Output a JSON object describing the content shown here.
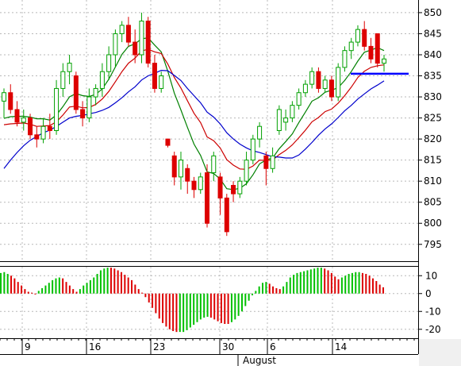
{
  "chart_data": [
    {
      "type": "candlestick",
      "title": "",
      "y_ticks": [
        795,
        800,
        805,
        810,
        815,
        820,
        825,
        830,
        835,
        840,
        845,
        850
      ],
      "ylim": [
        791,
        853
      ],
      "x_ticks": [
        "9",
        "16",
        "23",
        "30",
        "6",
        "14"
      ],
      "x_month_label": "August",
      "grid": true,
      "up_color": "#00a000",
      "down_color": "#dd0000",
      "horizontal_level": 835.5,
      "horizontal_level_color": "#0000ff",
      "candles": [
        [
          829.0,
          832.0,
          825.0,
          831.0
        ],
        [
          831.0,
          833.0,
          826.0,
          827.0
        ],
        [
          827.0,
          829.0,
          823.0,
          824.0
        ],
        [
          824.0,
          827.0,
          822.0,
          825.0
        ],
        [
          825.0,
          826.0,
          820.0,
          821.0
        ],
        [
          821.0,
          823.0,
          818.0,
          820.0
        ],
        [
          820.0,
          825.0,
          819.0,
          823.0
        ],
        [
          823.0,
          826.0,
          820.0,
          822.0
        ],
        [
          822.0,
          834.0,
          821.0,
          832.0
        ],
        [
          832.0,
          838.0,
          830.0,
          836.0
        ],
        [
          836.0,
          840.0,
          833.0,
          838.0
        ],
        [
          835.0,
          836.0,
          826.0,
          827.0
        ],
        [
          827.0,
          829.0,
          823.0,
          825.0
        ],
        [
          825.0,
          832.0,
          824.0,
          830.0
        ],
        [
          830.0,
          833.0,
          828.0,
          832.0
        ],
        [
          832.0,
          838.0,
          830.0,
          836.0
        ],
        [
          836.0,
          842.0,
          834.0,
          840.0
        ],
        [
          840.0,
          846.0,
          837.0,
          845.0
        ],
        [
          845.0,
          848.0,
          843.0,
          847.0
        ],
        [
          847.0,
          849.0,
          842.0,
          843.0
        ],
        [
          843.0,
          846.0,
          838.0,
          840.0
        ],
        [
          840.0,
          850.0,
          838.0,
          848.0
        ],
        [
          848.0,
          849.0,
          837.0,
          838.0
        ],
        [
          838.0,
          840.0,
          831.0,
          832.0
        ],
        [
          832.0,
          836.0,
          831.0,
          835.0
        ],
        [
          820.0,
          820.0,
          818.0,
          818.5
        ],
        [
          816.0,
          817.0,
          809.0,
          811.0
        ],
        [
          811.0,
          817.0,
          808.0,
          815.0
        ],
        [
          813.0,
          814.0,
          807.0,
          810.0
        ],
        [
          810.0,
          811.0,
          806.0,
          808.0
        ],
        [
          808.0,
          812.0,
          807.0,
          811.0
        ],
        [
          812.0,
          814.0,
          799.0,
          800.0
        ],
        [
          812.0,
          817.0,
          810.0,
          816.0
        ],
        [
          811.0,
          812.0,
          802.0,
          806.0
        ],
        [
          806.0,
          807.0,
          797.0,
          798.0
        ],
        [
          809.0,
          810.0,
          805.0,
          807.0
        ],
        [
          807.0,
          811.0,
          806.0,
          810.0
        ],
        [
          810.0,
          817.0,
          809.0,
          815.0
        ],
        [
          815.0,
          821.0,
          814.0,
          820.0
        ],
        [
          820.0,
          824.0,
          818.0,
          823.0
        ],
        [
          816.0,
          817.0,
          809.0,
          813.0
        ],
        [
          813.0,
          818.0,
          812.0,
          816.0
        ],
        [
          822.0,
          828.0,
          821.0,
          827.0
        ],
        [
          824.0,
          827.0,
          822.0,
          825.0
        ],
        [
          825.0,
          829.0,
          824.0,
          828.0
        ],
        [
          828.0,
          832.0,
          827.0,
          831.0
        ],
        [
          831.0,
          834.0,
          830.0,
          833.0
        ],
        [
          833.0,
          837.0,
          832.0,
          836.0
        ],
        [
          836.0,
          837.0,
          831.0,
          832.0
        ],
        [
          832.0,
          835.0,
          831.0,
          834.0
        ],
        [
          834.0,
          835.0,
          829.0,
          830.0
        ],
        [
          830.0,
          838.0,
          829.0,
          837.0
        ],
        [
          837.0,
          842.0,
          836.0,
          841.0
        ],
        [
          841.0,
          844.0,
          839.0,
          843.0
        ],
        [
          843.0,
          847.0,
          842.0,
          846.0
        ],
        [
          846.0,
          848.0,
          841.0,
          842.0
        ],
        [
          842.0,
          844.0,
          838.0,
          839.0
        ],
        [
          845.0,
          845.0,
          837.0,
          838.0
        ],
        [
          838.0,
          840.0,
          836.0,
          839.0
        ]
      ],
      "overlays": [
        {
          "color": "#008000",
          "values": [
            824.9,
            825.3,
            825.4,
            825.4,
            825.2,
            824.8,
            824.8,
            824.5,
            825.7,
            827.7,
            830.0,
            830.8,
            830.3,
            830.1,
            830.6,
            831.9,
            834.2,
            837.1,
            840.1,
            842.0,
            842.6,
            843.8,
            844.0,
            842.3,
            840.7,
            836.1,
            830.9,
            826.9,
            822.8,
            818.8,
            816.1,
            812.2,
            811.8,
            810.5,
            808.2,
            808.0,
            808.3,
            809.4,
            811.5,
            814.1,
            815.0,
            815.5,
            817.7,
            819.4,
            821.2,
            823.9,
            826.4,
            829.0,
            829.8,
            831.1,
            831.6,
            832.2,
            833.9,
            836.0,
            838.5,
            840.6,
            841.1,
            841.7,
            841.0
          ]
        },
        {
          "color": "#cc0000",
          "values": [
            823.4,
            823.6,
            823.7,
            823.8,
            823.5,
            823.0,
            823.1,
            823.2,
            824.1,
            825.7,
            827.6,
            827.8,
            827.4,
            827.5,
            828.2,
            829.5,
            831.3,
            833.6,
            836.0,
            838.0,
            839.2,
            840.9,
            841.3,
            840.7,
            840.3,
            837.8,
            834.6,
            832.1,
            829.1,
            826.1,
            823.9,
            820.5,
            819.6,
            817.9,
            815.1,
            813.8,
            812.9,
            812.8,
            813.6,
            815.0,
            814.9,
            815.0,
            816.3,
            817.3,
            818.6,
            820.3,
            822.1,
            824.1,
            825.1,
            826.5,
            827.1,
            828.5,
            830.3,
            832.3,
            834.6,
            836.1,
            837.0,
            837.4,
            837.6
          ]
        },
        {
          "color": "#0000cc",
          "values": [
            813.0,
            815.0,
            816.8,
            818.4,
            819.7,
            820.6,
            821.5,
            822.1,
            823.0,
            824.0,
            825.0,
            825.4,
            825.6,
            826.0,
            826.3,
            826.8,
            827.5,
            828.6,
            829.8,
            831.2,
            832.4,
            834.0,
            835.0,
            835.6,
            836.3,
            836.2,
            835.1,
            833.9,
            832.0,
            830.3,
            828.6,
            826.4,
            825.2,
            823.6,
            821.5,
            820.0,
            818.8,
            817.9,
            817.2,
            816.8,
            816.3,
            815.8,
            815.7,
            815.5,
            815.5,
            816.2,
            817.6,
            819.2,
            820.9,
            822.4,
            823.6,
            825.1,
            826.7,
            828.0,
            829.5,
            830.7,
            831.9,
            832.8,
            833.8
          ]
        }
      ]
    },
    {
      "type": "histogram",
      "title": "",
      "y_ticks": [
        10,
        0,
        -10,
        -20
      ],
      "ylim": [
        -25,
        15
      ],
      "up_color": "#00c000",
      "down_color": "#dd0000",
      "values": [
        11.5,
        12.0,
        11.0,
        10.0,
        8.5,
        6.5,
        4.5,
        2.5,
        1.0,
        0.5,
        -0.5,
        1.5,
        3.0,
        4.5,
        6.0,
        7.5,
        8.5,
        9.0,
        8.5,
        6.5,
        4.5,
        2.5,
        1.0,
        2.5,
        4.5,
        6.0,
        7.5,
        9.0,
        11.0,
        13.0,
        14.0,
        14.5,
        14.5,
        14.0,
        13.0,
        12.0,
        10.5,
        9.0,
        7.5,
        5.0,
        2.5,
        0.5,
        -2.0,
        -5.0,
        -8.0,
        -11.0,
        -14.0,
        -16.5,
        -18.5,
        -20.0,
        -21.0,
        -21.5,
        -21.5,
        -21.5,
        -20.5,
        -19.0,
        -17.5,
        -16.0,
        -14.5,
        -13.5,
        -13.0,
        -13.5,
        -14.5,
        -15.5,
        -16.5,
        -17.0,
        -17.0,
        -16.0,
        -14.5,
        -12.5,
        -10.0,
        -7.0,
        -4.0,
        -1.0,
        1.5,
        4.0,
        6.0,
        6.5,
        5.5,
        4.0,
        3.0,
        2.5,
        4.0,
        6.5,
        9.0,
        10.5,
        11.5,
        12.0,
        12.5,
        13.0,
        13.5,
        14.0,
        14.5,
        14.5,
        14.0,
        13.0,
        11.5,
        9.5,
        8.0,
        9.0,
        10.0,
        11.0,
        11.5,
        12.0,
        12.0,
        11.5,
        11.0,
        10.0,
        8.5,
        7.0,
        5.0,
        3.5
      ],
      "color_flags": [
        1,
        1,
        1,
        0,
        0,
        0,
        0,
        0,
        0,
        0,
        0,
        1,
        1,
        1,
        1,
        1,
        1,
        1,
        0,
        0,
        0,
        0,
        0,
        1,
        1,
        1,
        1,
        1,
        1,
        1,
        1,
        1,
        0,
        0,
        0,
        0,
        0,
        0,
        0,
        0,
        0,
        0,
        0,
        0,
        0,
        0,
        0,
        0,
        0,
        0,
        0,
        0,
        1,
        1,
        1,
        1,
        1,
        1,
        1,
        1,
        1,
        0,
        0,
        0,
        0,
        0,
        0,
        1,
        1,
        1,
        1,
        1,
        1,
        1,
        1,
        1,
        1,
        1,
        0,
        0,
        0,
        0,
        1,
        1,
        1,
        1,
        1,
        1,
        1,
        1,
        1,
        1,
        1,
        1,
        0,
        0,
        0,
        0,
        0,
        1,
        1,
        1,
        1,
        1,
        1,
        0,
        0,
        0,
        0,
        0,
        0,
        0
      ]
    }
  ]
}
